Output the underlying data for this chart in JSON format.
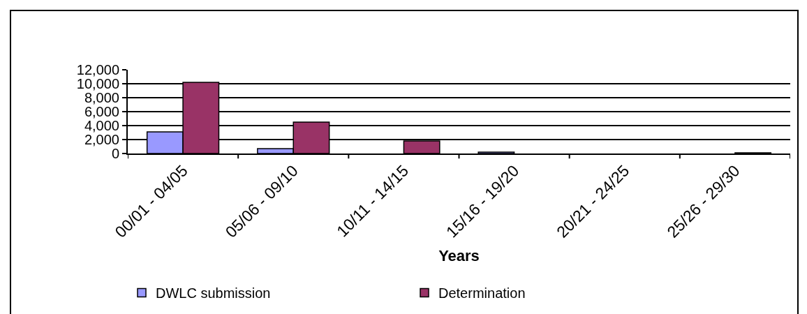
{
  "chart_data": {
    "type": "bar",
    "xlabel": "Years",
    "categories": [
      "00/01 - 04/05",
      "05/06 - 09/10",
      "10/11 - 14/15",
      "15/16 - 19/20",
      "20/21 - 24/25",
      "25/26 - 29/30"
    ],
    "series": [
      {
        "name": "DWLC submission",
        "color": "#9999ff",
        "values": [
          3100,
          700,
          null,
          200,
          null,
          null
        ]
      },
      {
        "name": "Determination",
        "color": "#993366",
        "values": [
          10200,
          4500,
          1800,
          null,
          null,
          100
        ]
      }
    ],
    "ylim": [
      0,
      12000
    ],
    "yticks": [
      {
        "value": 0,
        "label": "0"
      },
      {
        "value": 2000,
        "label": "2,000"
      },
      {
        "value": 4000,
        "label": "4,000"
      },
      {
        "value": 6000,
        "label": "6,000"
      },
      {
        "value": 8000,
        "label": "8,000"
      },
      {
        "value": 10000,
        "label": "10,000"
      },
      {
        "value": 12000,
        "label": "12,000"
      }
    ],
    "grid": "y",
    "legend": "bottom"
  }
}
